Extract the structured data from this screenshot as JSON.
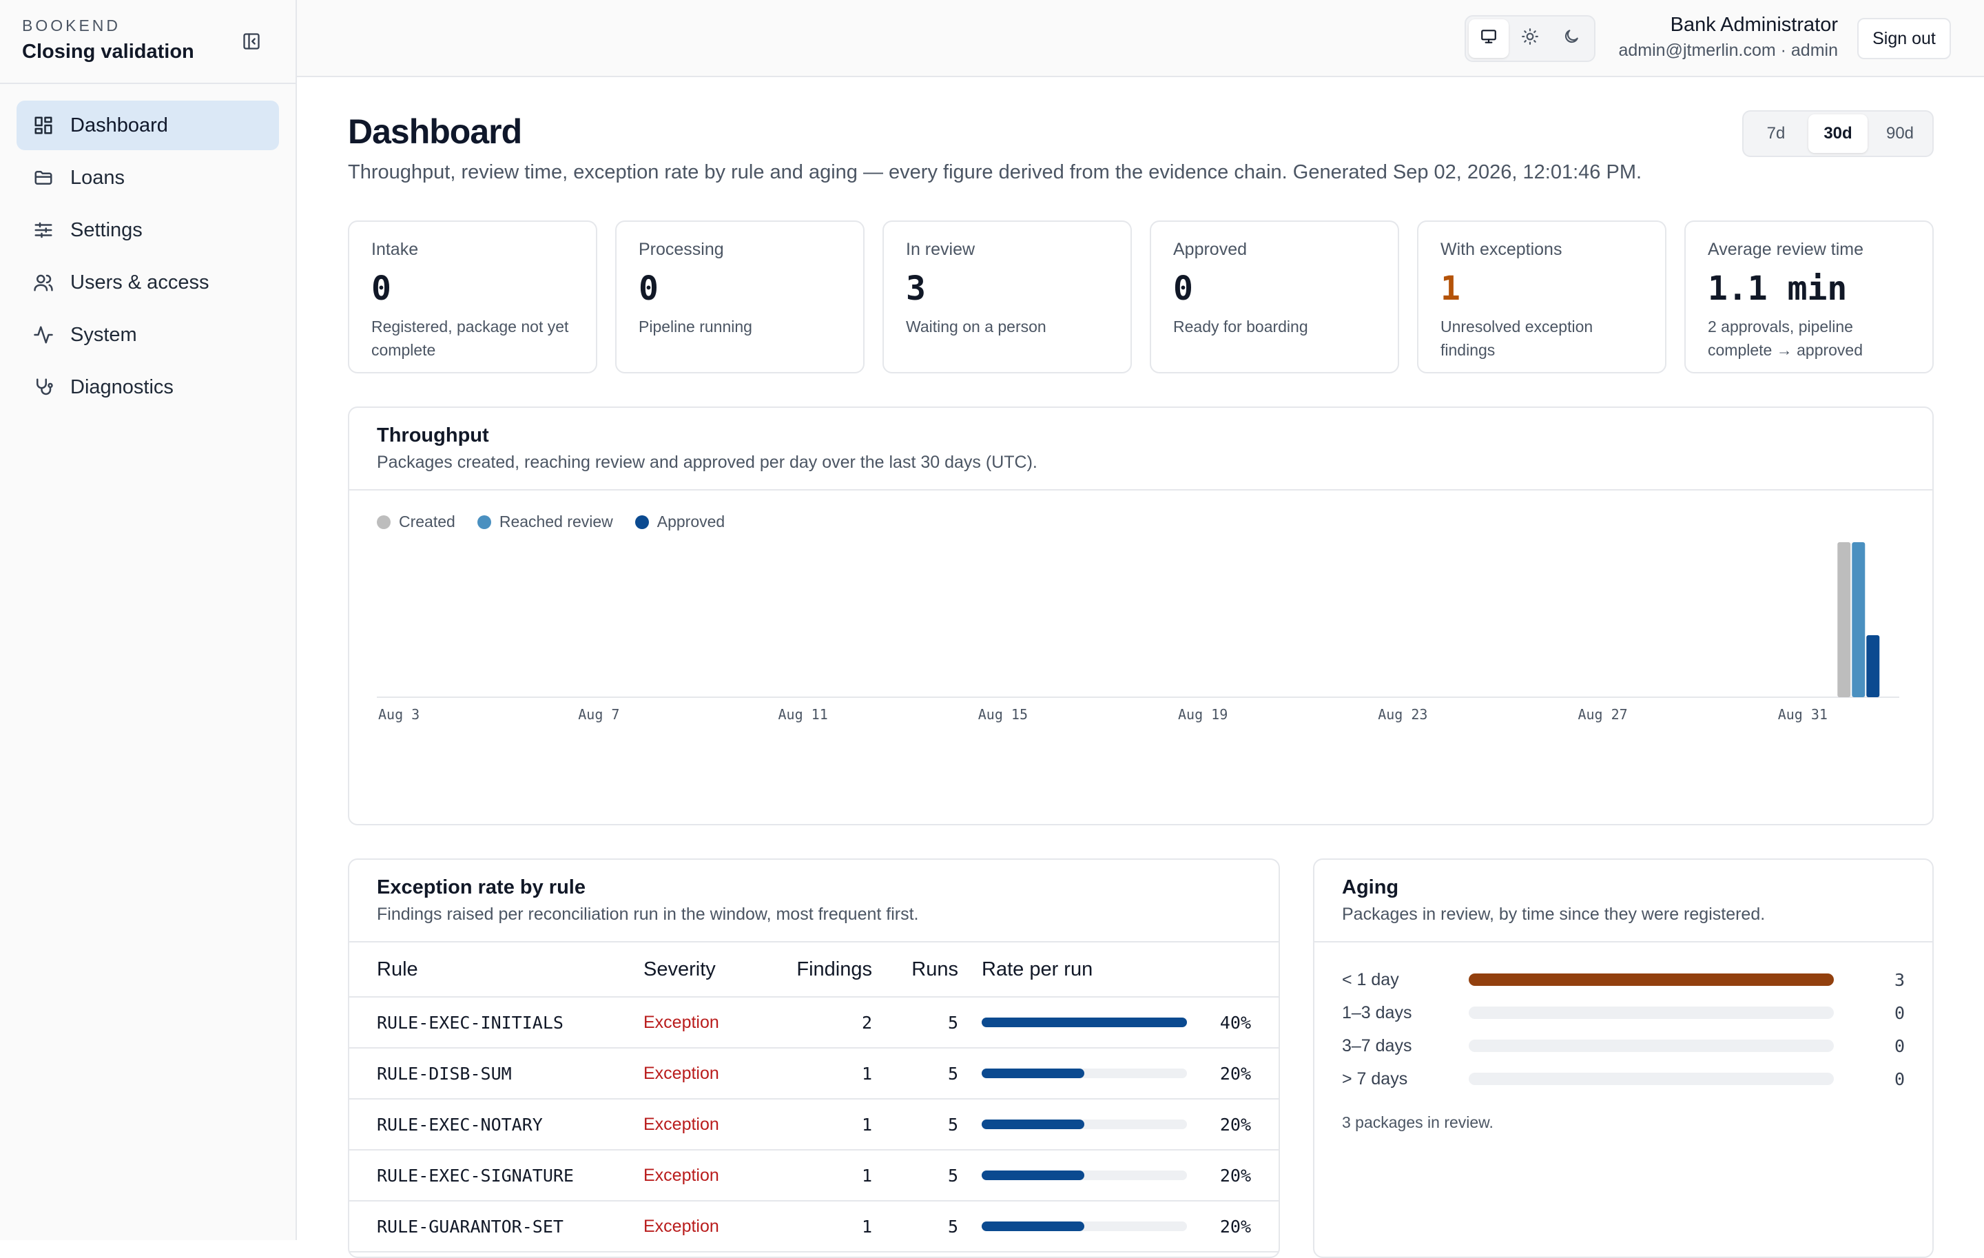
{
  "brand": {
    "kicker": "BOOKEND",
    "title": "Closing validation"
  },
  "sidebar": {
    "items": [
      {
        "label": "Dashboard",
        "icon": "dashboard-icon",
        "active": true
      },
      {
        "label": "Loans",
        "icon": "folder-icon",
        "active": false
      },
      {
        "label": "Settings",
        "icon": "sliders-icon",
        "active": false
      },
      {
        "label": "Users & access",
        "icon": "users-icon",
        "active": false
      },
      {
        "label": "System",
        "icon": "activity-icon",
        "active": false
      },
      {
        "label": "Diagnostics",
        "icon": "stethoscope-icon",
        "active": false
      }
    ]
  },
  "header": {
    "theme_options": [
      "monitor-icon",
      "sun-icon",
      "moon-icon"
    ],
    "theme_selected": "monitor-icon",
    "user_name": "Bank Administrator",
    "user_meta": "admin@jtmerlin.com · admin",
    "sign_out": "Sign out"
  },
  "page": {
    "title": "Dashboard",
    "subtitle": "Throughput, review time, exception rate by rule and aging — every figure derived from the evidence chain. Generated Sep 02, 2026, 12:01:46 PM.",
    "ranges": [
      "7d",
      "30d",
      "90d"
    ],
    "range_selected": "30d"
  },
  "stats": [
    {
      "label": "Intake",
      "value": "0",
      "desc": "Registered, package not yet complete",
      "warn": false
    },
    {
      "label": "Processing",
      "value": "0",
      "desc": "Pipeline running",
      "warn": false
    },
    {
      "label": "In review",
      "value": "3",
      "desc": "Waiting on a person",
      "warn": false
    },
    {
      "label": "Approved",
      "value": "0",
      "desc": "Ready for boarding",
      "warn": false
    },
    {
      "label": "With exceptions",
      "value": "1",
      "desc": "Unresolved exception findings",
      "warn": true
    },
    {
      "label": "Average review time",
      "value": "1.1 min",
      "desc": "2 approvals, pipeline complete → approved",
      "warn": false
    }
  ],
  "throughput": {
    "title": "Throughput",
    "subtitle": "Packages created, reaching review and approved per day over the last 30 days (UTC)."
  },
  "chart_data": {
    "type": "bar",
    "categories": [
      "Aug 3",
      "Aug 4",
      "Aug 5",
      "Aug 6",
      "Aug 7",
      "Aug 8",
      "Aug 9",
      "Aug 10",
      "Aug 11",
      "Aug 12",
      "Aug 13",
      "Aug 14",
      "Aug 15",
      "Aug 16",
      "Aug 17",
      "Aug 18",
      "Aug 19",
      "Aug 20",
      "Aug 21",
      "Aug 22",
      "Aug 23",
      "Aug 24",
      "Aug 25",
      "Aug 26",
      "Aug 27",
      "Aug 28",
      "Aug 29",
      "Aug 30",
      "Aug 31",
      "Sep 1"
    ],
    "tick_labels": [
      "Aug 3",
      "Aug 7",
      "Aug 11",
      "Aug 15",
      "Aug 19",
      "Aug 23",
      "Aug 27",
      "Aug 31"
    ],
    "series": [
      {
        "name": "Created",
        "color": "#bdbdbd",
        "values": [
          0,
          0,
          0,
          0,
          0,
          0,
          0,
          0,
          0,
          0,
          0,
          0,
          0,
          0,
          0,
          0,
          0,
          0,
          0,
          0,
          0,
          0,
          0,
          0,
          0,
          0,
          0,
          0,
          0,
          5
        ]
      },
      {
        "name": "Reached review",
        "color": "#4a90c0",
        "values": [
          0,
          0,
          0,
          0,
          0,
          0,
          0,
          0,
          0,
          0,
          0,
          0,
          0,
          0,
          0,
          0,
          0,
          0,
          0,
          0,
          0,
          0,
          0,
          0,
          0,
          0,
          0,
          0,
          0,
          5
        ]
      },
      {
        "name": "Approved",
        "color": "#0b4a90",
        "values": [
          0,
          0,
          0,
          0,
          0,
          0,
          0,
          0,
          0,
          0,
          0,
          0,
          0,
          0,
          0,
          0,
          0,
          0,
          0,
          0,
          0,
          0,
          0,
          0,
          0,
          0,
          0,
          0,
          0,
          2
        ]
      }
    ],
    "ylim": [
      0,
      5
    ],
    "legend": "top-left",
    "grid": false
  },
  "exceptions": {
    "title": "Exception rate by rule",
    "subtitle": "Findings raised per reconciliation run in the window, most frequent first.",
    "columns": [
      "Rule",
      "Severity",
      "Findings",
      "Runs",
      "Rate per run"
    ],
    "rows": [
      {
        "rule": "RULE-EXEC-INITIALS",
        "severity": "Exception",
        "findings": "2",
        "runs": "5",
        "rate": 0.4,
        "rate_label": "40%"
      },
      {
        "rule": "RULE-DISB-SUM",
        "severity": "Exception",
        "findings": "1",
        "runs": "5",
        "rate": 0.2,
        "rate_label": "20%"
      },
      {
        "rule": "RULE-EXEC-NOTARY",
        "severity": "Exception",
        "findings": "1",
        "runs": "5",
        "rate": 0.2,
        "rate_label": "20%"
      },
      {
        "rule": "RULE-EXEC-SIGNATURE",
        "severity": "Exception",
        "findings": "1",
        "runs": "5",
        "rate": 0.2,
        "rate_label": "20%"
      },
      {
        "rule": "RULE-GUARANTOR-SET",
        "severity": "Exception",
        "findings": "1",
        "runs": "5",
        "rate": 0.2,
        "rate_label": "20%"
      }
    ]
  },
  "aging": {
    "title": "Aging",
    "subtitle": "Packages in review, by time since they were registered.",
    "buckets": [
      {
        "label": "< 1 day",
        "count": "3",
        "fraction": 1.0
      },
      {
        "label": "1–3 days",
        "count": "0",
        "fraction": 0
      },
      {
        "label": "3–7 days",
        "count": "0",
        "fraction": 0
      },
      {
        "label": "> 7 days",
        "count": "0",
        "fraction": 0
      }
    ],
    "note": "3 packages in review."
  }
}
